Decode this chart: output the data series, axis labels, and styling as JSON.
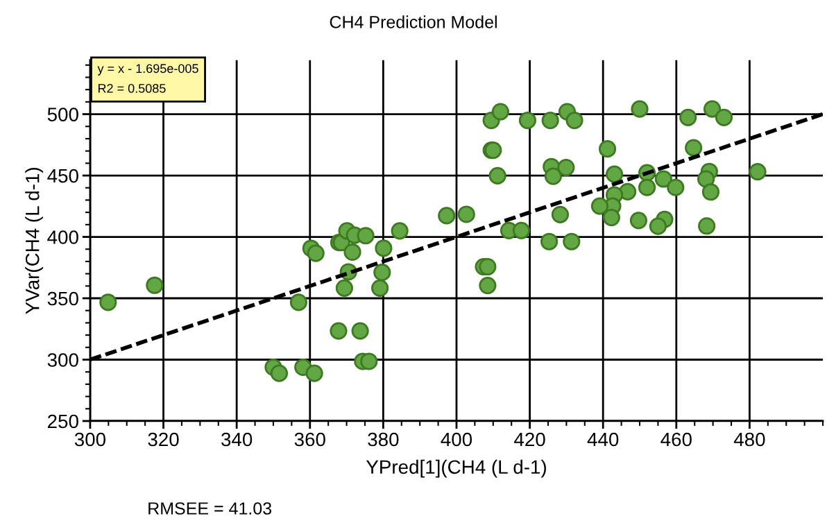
{
  "chart_data": {
    "type": "scatter",
    "title": "CH4 Prediction Model",
    "xlabel": "YPred[1](CH4 (L d-1)",
    "ylabel": "YVar(CH4 (L d-1)",
    "annotations": [
      "y = x - 1.695e-005\nR2 = 0.5085",
      "RMSEE = 41.03"
    ],
    "xlim": [
      300,
      500
    ],
    "ylim": [
      250,
      544
    ],
    "xticks": [
      300,
      320,
      340,
      360,
      380,
      400,
      420,
      440,
      460,
      480
    ],
    "yticks": [
      250,
      300,
      350,
      400,
      450,
      500
    ],
    "grid": true,
    "marker": "circle",
    "legend": false,
    "series": [
      {
        "color": "#62a744",
        "x": [
          304.9,
          317.6,
          356.9,
          360.3,
          361.6,
          367.9,
          368.6,
          370.1,
          372.2,
          375.2,
          371.6,
          384.5,
          370.5,
          380.1,
          379.7,
          369.4,
          379.1,
          367.8,
          373.7,
          374.4,
          376.1,
          350.0,
          351.6,
          358.1,
          361.2,
          409.5,
          412.0,
          419.4,
          425.6,
          430.2,
          432.2,
          450.0,
          463.2,
          469.8,
          473.0,
          409.5,
          410.0,
          441.2,
          464.7,
          425.9,
          429.9,
          426.4,
          411.2,
          443.1,
          452.0,
          456.5,
          459.8,
          452.0,
          469.0,
          468.1,
          469.4,
          482.2,
          446.7,
          443.1,
          442.6,
          439.1,
          442.3,
          449.7,
          456.8,
          455.0,
          468.3,
          397.3,
          402.7,
          428.3,
          414.3,
          417.7,
          425.3,
          431.4,
          407.4,
          408.5,
          408.5
        ],
        "values": [
          346.7,
          360.6,
          346.7,
          390.7,
          386.7,
          395.4,
          395.4,
          404.9,
          401.4,
          401.0,
          387.6,
          404.9,
          371.5,
          390.8,
          371.1,
          358.3,
          358.3,
          323.4,
          323.4,
          298.6,
          298.6,
          293.8,
          288.9,
          293.8,
          288.9,
          494.9,
          502.0,
          494.9,
          494.9,
          502.0,
          494.9,
          504.2,
          497.3,
          504.2,
          497.3,
          470.6,
          470.6,
          471.7,
          472.6,
          457.2,
          456.5,
          449.4,
          449.8,
          451.1,
          452.2,
          447.2,
          440.3,
          440.3,
          453.3,
          447.2,
          436.6,
          453.1,
          436.8,
          434.2,
          425.1,
          425.1,
          415.8,
          413.4,
          414.3,
          408.7,
          408.9,
          417.3,
          418.4,
          418.2,
          405.2,
          405.2,
          396.2,
          396.2,
          375.7,
          375.7,
          360.4
        ]
      },
      {
        "type": "line",
        "color": "#000000",
        "line_style": "dashed",
        "marker": "none",
        "x": [
          300,
          500
        ],
        "values": [
          300,
          500
        ]
      }
    ]
  }
}
